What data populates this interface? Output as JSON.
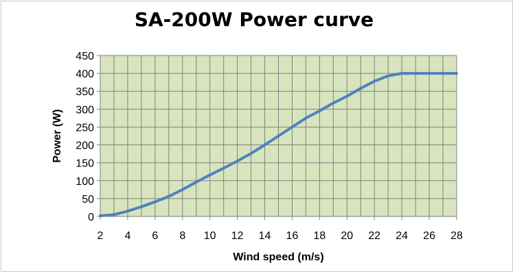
{
  "chart_data": {
    "type": "line",
    "title": "SA-200W Power curve",
    "xlabel": "Wind speed (m/s)",
    "ylabel": "Power (W)",
    "xlim": [
      2,
      28
    ],
    "ylim": [
      0,
      450
    ],
    "x_ticks": [
      2,
      4,
      6,
      8,
      10,
      12,
      14,
      16,
      18,
      20,
      22,
      24,
      26,
      28
    ],
    "y_ticks": [
      0,
      50,
      100,
      150,
      200,
      250,
      300,
      350,
      400,
      450
    ],
    "x_tick_labels": [
      "2",
      "4",
      "6",
      "8",
      "10",
      "12",
      "14",
      "16",
      "18",
      "20",
      "22",
      "24",
      "26",
      "28"
    ],
    "y_tick_labels": [
      "0",
      "50",
      "100",
      "150",
      "200",
      "250",
      "300",
      "350",
      "400",
      "450"
    ],
    "grid": true,
    "plot_background": "#d7e4bd",
    "grid_color": "#808080",
    "line_color": "#4f81bd",
    "series": [
      {
        "x": [
          2,
          3,
          4,
          5,
          6,
          7,
          8,
          9,
          10,
          11,
          12,
          13,
          14,
          15,
          16,
          17,
          18,
          19,
          20,
          21,
          22,
          23,
          24,
          25,
          26,
          27,
          28
        ],
        "values": [
          2,
          5,
          15,
          27,
          41,
          56,
          75,
          96,
          116,
          135,
          155,
          176,
          200,
          225,
          250,
          275,
          295,
          317,
          336,
          358,
          378,
          393,
          400,
          400,
          400,
          400,
          400
        ]
      }
    ]
  }
}
